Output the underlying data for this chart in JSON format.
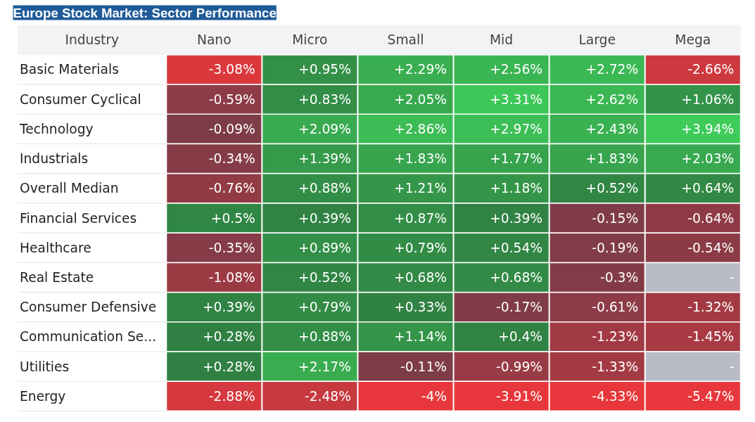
{
  "chart_data": {
    "type": "heatmap",
    "title": "Europe Stock Market: Sector Performance",
    "ylabel": "Industry",
    "categories": [
      "Nano",
      "Micro",
      "Small",
      "Mid",
      "Large",
      "Mega"
    ],
    "y_categories": [
      "Basic Materials",
      "Consumer Cyclical",
      "Technology",
      "Industrials",
      "Overall Median",
      "Financial Services",
      "Healthcare",
      "Real Estate",
      "Consumer Defensive",
      "Communication Se...",
      "Utilities",
      "Energy"
    ],
    "cells": [
      [
        -3.08,
        0.95,
        2.29,
        2.56,
        2.72,
        -2.66
      ],
      [
        -0.59,
        0.83,
        2.05,
        3.31,
        2.62,
        1.06
      ],
      [
        -0.09,
        2.09,
        2.86,
        2.97,
        2.43,
        3.94
      ],
      [
        -0.34,
        1.39,
        1.83,
        1.77,
        1.83,
        2.03
      ],
      [
        -0.76,
        0.88,
        1.21,
        1.18,
        0.52,
        0.64
      ],
      [
        0.5,
        0.39,
        0.87,
        0.39,
        -0.15,
        -0.64
      ],
      [
        -0.35,
        0.89,
        0.79,
        0.54,
        -0.19,
        -0.54
      ],
      [
        -1.08,
        0.52,
        0.68,
        0.68,
        -0.3,
        null
      ],
      [
        0.39,
        0.79,
        0.33,
        -0.17,
        -0.61,
        -1.32
      ],
      [
        0.28,
        0.88,
        1.14,
        0.4,
        -1.23,
        -1.45
      ],
      [
        0.28,
        2.17,
        -0.11,
        -0.99,
        -1.33,
        null
      ],
      [
        -2.88,
        -2.48,
        -4,
        -3.91,
        -4.33,
        -5.47
      ]
    ],
    "cell_labels": [
      [
        "-3.08%",
        "+0.95%",
        "+2.29%",
        "+2.56%",
        "+2.72%",
        "-2.66%"
      ],
      [
        "-0.59%",
        "+0.83%",
        "+2.05%",
        "+3.31%",
        "+2.62%",
        "+1.06%"
      ],
      [
        "-0.09%",
        "+2.09%",
        "+2.86%",
        "+2.97%",
        "+2.43%",
        "+3.94%"
      ],
      [
        "-0.34%",
        "+1.39%",
        "+1.83%",
        "+1.77%",
        "+1.83%",
        "+2.03%"
      ],
      [
        "-0.76%",
        "+0.88%",
        "+1.21%",
        "+1.18%",
        "+0.52%",
        "+0.64%"
      ],
      [
        "+0.5%",
        "+0.39%",
        "+0.87%",
        "+0.39%",
        "-0.15%",
        "-0.64%"
      ],
      [
        "-0.35%",
        "+0.89%",
        "+0.79%",
        "+0.54%",
        "-0.19%",
        "-0.54%"
      ],
      [
        "-1.08%",
        "+0.52%",
        "+0.68%",
        "+0.68%",
        "-0.3%",
        "-"
      ],
      [
        "+0.39%",
        "+0.79%",
        "+0.33%",
        "-0.17%",
        "-0.61%",
        "-1.32%"
      ],
      [
        "+0.28%",
        "+0.88%",
        "+1.14%",
        "+0.4%",
        "-1.23%",
        "-1.45%"
      ],
      [
        "+0.28%",
        "+2.17%",
        "-0.11%",
        "-0.99%",
        "-1.33%",
        "-"
      ],
      [
        "-2.88%",
        "-2.48%",
        "-4%",
        "-3.91%",
        "-4.33%",
        "-5.47%"
      ]
    ]
  }
}
